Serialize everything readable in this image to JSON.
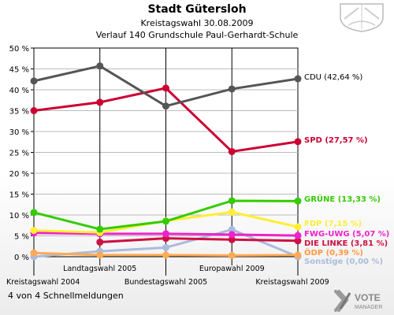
{
  "header": {
    "title": "Stadt Gütersloh",
    "line1": "Kreistagswahl 30.08.2009",
    "line2": "Verlauf 140 Grundschule Paul-Gerhardt-Schule"
  },
  "footer": {
    "text": "4 von 4 Schnellmeldungen"
  },
  "brand": {
    "line1": "VOTE",
    "line2": "MANAGER"
  },
  "chart_data": {
    "type": "line",
    "categories": [
      "Kreistagswahl 2004",
      "Landtagswahl 2005",
      "Bundestagswahl 2005",
      "Europawahl 2009",
      "Kreistagswahl 2009"
    ],
    "category_label_row": [
      0,
      1,
      0,
      1,
      0
    ],
    "ylim": [
      0,
      50
    ],
    "yticks": [
      0,
      5,
      10,
      15,
      20,
      25,
      30,
      35,
      40,
      45,
      50
    ],
    "ytick_labels": [
      "0 %",
      "5 %",
      "10 %",
      "15 %",
      "20 %",
      "25 %",
      "30 %",
      "35 %",
      "40 %",
      "45 %",
      "50 %"
    ],
    "grid": true,
    "series": [
      {
        "name": "CDU",
        "label": "CDU (42,64 %)",
        "color": "#555555",
        "label_color": "#000000",
        "values": [
          42.1,
          45.7,
          36.1,
          40.2,
          42.64
        ]
      },
      {
        "name": "SPD",
        "label": "SPD (27,57 %)",
        "color": "#cc0033",
        "label_color": "#cc0033",
        "values": [
          35.0,
          37.0,
          40.4,
          25.2,
          27.57
        ]
      },
      {
        "name": "GRÜNE",
        "label": "GRÜNE (13,33 %)",
        "color": "#33cc00",
        "label_color": "#33cc00",
        "values": [
          10.6,
          6.6,
          8.5,
          13.4,
          13.33
        ]
      },
      {
        "name": "FDP",
        "label": "FDP (7,15 %)",
        "color": "#ffee33",
        "label_color": "#ffee33",
        "values": [
          6.3,
          5.8,
          8.6,
          10.7,
          7.15
        ]
      },
      {
        "name": "FWG-UWG",
        "label": "FWG-UWG (5,07 %)",
        "color": "#ee22cc",
        "label_color": "#ee22cc",
        "values": [
          5.7,
          5.5,
          5.5,
          5.3,
          5.07
        ]
      },
      {
        "name": "DIE LINKE",
        "label": "DIE LINKE (3,81 %)",
        "color": "#cc1144",
        "label_color": "#cc1144",
        "values": [
          null,
          3.5,
          4.4,
          4.1,
          3.81
        ]
      },
      {
        "name": "ÖDP",
        "label": "ÖDP (0,39 %)",
        "color": "#ffaa55",
        "label_color": "#ff9944",
        "values": [
          0.9,
          0.4,
          0.4,
          0.3,
          0.39
        ]
      },
      {
        "name": "Sonstige",
        "label": "Sonstige (0,00 %)",
        "color": "#aabbdd",
        "label_color": "#aabbdd",
        "values": [
          0.0,
          1.3,
          2.2,
          6.5,
          0.0
        ]
      }
    ]
  }
}
